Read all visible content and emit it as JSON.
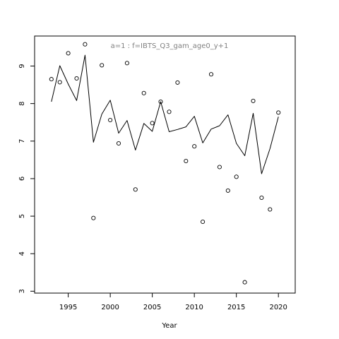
{
  "chart_data": {
    "type": "scatter",
    "title": "a=1  :  f=IBTS_Q3_gam_age0_y+1",
    "xlabel": "Year",
    "ylabel": "",
    "xlim": [
      1991,
      2022
    ],
    "ylim": [
      2.95,
      9.8
    ],
    "x_ticks": [
      1995,
      2000,
      2005,
      2010,
      2015,
      2020
    ],
    "y_ticks": [
      3,
      4,
      5,
      6,
      7,
      8,
      9
    ],
    "grid": false,
    "legend": "none",
    "series": [
      {
        "kind": "points",
        "marker": "open-circle",
        "color": "#000000",
        "x": [
          1993,
          1994,
          1995,
          1996,
          1997,
          1998,
          1999,
          2000,
          2001,
          2002,
          2003,
          2004,
          2005,
          2006,
          2007,
          2008,
          2009,
          2010,
          2011,
          2012,
          2013,
          2014,
          2015,
          2016,
          2017,
          2018,
          2019,
          2020
        ],
        "y": [
          8.65,
          8.57,
          9.34,
          8.67,
          9.58,
          4.95,
          9.02,
          7.56,
          6.94,
          9.08,
          5.71,
          8.28,
          7.48,
          8.05,
          7.78,
          8.56,
          6.47,
          6.86,
          4.85,
          8.78,
          6.31,
          5.68,
          6.05,
          3.24,
          8.07,
          5.49,
          5.18,
          7.76
        ]
      },
      {
        "kind": "line",
        "color": "#000000",
        "x": [
          1993,
          1994,
          1995,
          1996,
          1997,
          1998,
          1999,
          2000,
          2001,
          2002,
          2003,
          2004,
          2005,
          2006,
          2007,
          2008,
          2009,
          2010,
          2011,
          2012,
          2013,
          2014,
          2015,
          2016,
          2017,
          2018,
          2019,
          2020
        ],
        "y": [
          8.05,
          9.01,
          8.52,
          8.08,
          9.29,
          6.97,
          7.72,
          8.09,
          7.21,
          7.55,
          6.76,
          7.47,
          7.26,
          8.05,
          7.25,
          7.31,
          7.38,
          7.66,
          6.95,
          7.32,
          7.41,
          7.7,
          6.94,
          6.61,
          7.74,
          6.13,
          6.8,
          7.65
        ]
      }
    ]
  }
}
